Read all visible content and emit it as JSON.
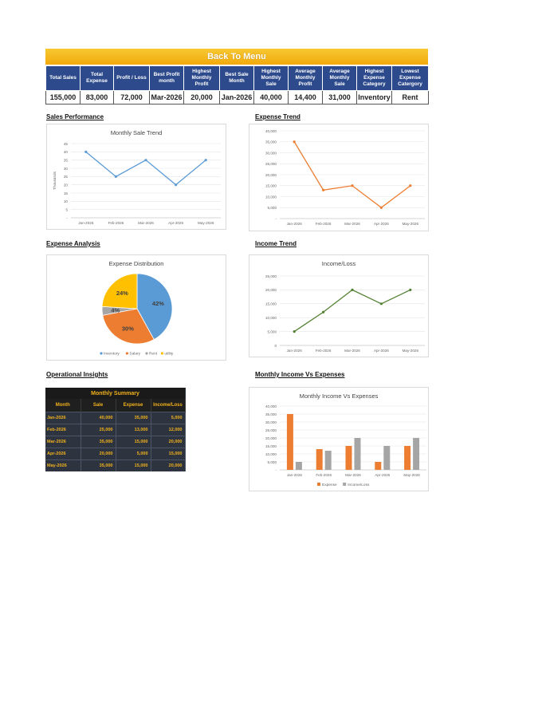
{
  "header": {
    "back_label": "Back To Menu"
  },
  "kpis": {
    "headers": [
      "Total Sales",
      "Total Expense",
      "Profit / Loss",
      "Best Profit month",
      "Highest Monthly Profit",
      "Best Sale Month",
      "Highest Monthly Sale",
      "Average Monthly Profit",
      "Average Monthly Sale",
      "Highest Expense Category",
      "Lowest Expense Catergory"
    ],
    "values": [
      "155,000",
      "83,000",
      "72,000",
      "Mar-2026",
      "20,000",
      "Jan-2026",
      "40,000",
      "14,400",
      "31,000",
      "Inventory",
      "Rent"
    ]
  },
  "sections": {
    "sales_performance": "Sales Performance",
    "expense_trend": "Expense Trend",
    "expense_analysis": "Expense Analysis",
    "income_trend": "Income Trend",
    "operational_insights": "Operational Insights",
    "monthly_income_vs_expenses": "Monthly Income Vs Expenses"
  },
  "summary": {
    "caption": "Monthly Summary",
    "headers": [
      "Month",
      "Sale",
      "Expense",
      "Income/Loss"
    ],
    "rows": [
      [
        "Jan-2026",
        "40,000",
        "35,000",
        "5,000"
      ],
      [
        "Feb-2026",
        "25,000",
        "13,000",
        "12,000"
      ],
      [
        "Mar-2026",
        "35,000",
        "15,000",
        "20,000"
      ],
      [
        "Apr-2026",
        "20,000",
        "5,000",
        "15,000"
      ],
      [
        "May-2026",
        "35,000",
        "15,000",
        "20,000"
      ]
    ]
  },
  "colors": {
    "blue": "#5b9bd5",
    "orange": "#ed7d31",
    "gray": "#a5a5a5",
    "yellow": "#ffc000",
    "green": "#548235",
    "header_blue": "#2c4a8c"
  },
  "chart_data": [
    {
      "id": "sale",
      "type": "line",
      "title": "Monthly Sale Trend",
      "ylabel": "Thousands",
      "categories": [
        "Jan-2026",
        "Feb-2026",
        "Mar-2026",
        "Apr-2026",
        "May-2026"
      ],
      "values": [
        40,
        25,
        35,
        20,
        35
      ],
      "ylim": [
        0,
        45
      ],
      "yticks": [
        5,
        10,
        15,
        20,
        25,
        30,
        35,
        40,
        45
      ],
      "ytick_labels": [
        "5",
        "10",
        "15",
        "20",
        "25",
        "30",
        "35",
        "40",
        "45"
      ],
      "zero_label": "-",
      "color": "#5b9bd5"
    },
    {
      "id": "expense",
      "type": "line",
      "title": "",
      "categories": [
        "Jan-2026",
        "Feb-2026",
        "Mar-2026",
        "Apr-2026",
        "May-2026"
      ],
      "values": [
        35000,
        13000,
        15000,
        5000,
        15000
      ],
      "ylim": [
        0,
        40000
      ],
      "yticks": [
        5000,
        10000,
        15000,
        20000,
        25000,
        30000,
        35000,
        40000
      ],
      "ytick_labels": [
        "5,000",
        "10,000",
        "15,000",
        "20,000",
        "25,000",
        "30,000",
        "35,000",
        "40,000"
      ],
      "zero_label": "-",
      "color": "#ed7d31"
    },
    {
      "id": "pie",
      "type": "pie",
      "title": "Expense Distribution",
      "labels": [
        "Inventory",
        "Salary",
        "Rent",
        "utility"
      ],
      "values": [
        42,
        30,
        4,
        24
      ],
      "slice_labels": [
        "42%",
        "30%",
        "4%",
        "24%"
      ],
      "colors": [
        "#5b9bd5",
        "#ed7d31",
        "#a5a5a5",
        "#ffc000"
      ],
      "legend": "bottom"
    },
    {
      "id": "income",
      "type": "line",
      "title": "Income/Loss",
      "categories": [
        "Jan-2026",
        "Feb-2026",
        "Mar-2026",
        "Apr-2026",
        "May-2026"
      ],
      "values": [
        5000,
        12000,
        20000,
        15000,
        20000
      ],
      "ylim": [
        0,
        25000
      ],
      "yticks": [
        0,
        5000,
        10000,
        15000,
        20000,
        25000
      ],
      "ytick_labels": [
        "0",
        "5,000",
        "10,000",
        "15,000",
        "20,000",
        "25,000"
      ],
      "color": "#548235"
    },
    {
      "id": "bar",
      "type": "bar",
      "title": "Monthly Income Vs Expenses",
      "categories": [
        "Jan-2026",
        "Feb-2026",
        "Mar-2026",
        "Apr-2026",
        "May-2026"
      ],
      "series": [
        {
          "name": "Expense",
          "values": [
            35000,
            13000,
            15000,
            5000,
            15000
          ],
          "color": "#ed7d31"
        },
        {
          "name": "Income/Loss",
          "values": [
            5000,
            12000,
            20000,
            15000,
            20000
          ],
          "color": "#a5a5a5"
        }
      ],
      "ylim": [
        0,
        40000
      ],
      "yticks": [
        5000,
        10000,
        15000,
        20000,
        25000,
        30000,
        35000,
        40000
      ],
      "ytick_labels": [
        "5,000",
        "10,000",
        "15,000",
        "20,000",
        "25,000",
        "30,000",
        "35,000",
        "40,000"
      ],
      "zero_label": "-",
      "legend": "bottom"
    }
  ]
}
